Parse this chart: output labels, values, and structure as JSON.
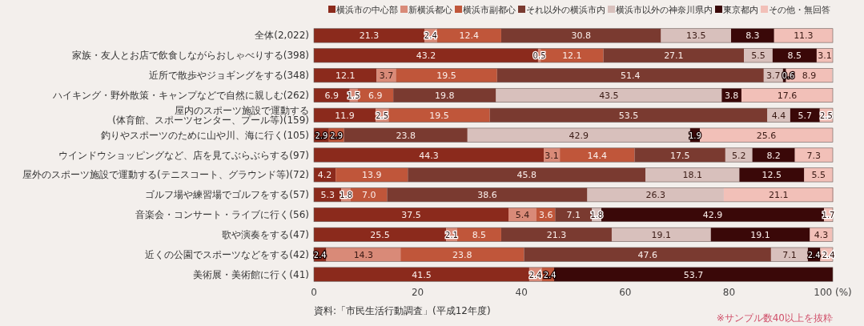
{
  "chart_data": {
    "type": "bar",
    "orientation": "horizontal",
    "stacked": true,
    "grid": false,
    "legend": "top right",
    "categories": [
      "全体(2,022)",
      "家族・友人とお店で飲食しながらおしゃべりする(398)",
      "近所で散歩やジョギングをする(348)",
      "ハイキング・野外散策・キャンプなどで自然に親しむ(262)",
      "屋内のスポーツ施設で運動する(体育館、スポーツセンター、プール等)(159)",
      "釣りやスポーツのために山や川、海に行く(105)",
      "ウインドウショッピングなど、店を見てぶらぶらする(97)",
      "屋外のスポーツ施設で運動する(テニスコート、グラウンド等)(72)",
      "ゴルフ場や練習場でゴルフをする(57)",
      "音楽会・コンサート・ライブに行く(56)",
      "歌や演奏をする(47)",
      "近くの公園でスポーツなどをする(42)",
      "美術展・美術館に行く(41)"
    ],
    "series": [
      {
        "name": "横浜市の中心部",
        "color": "#8b2a1c",
        "values": [
          21.3,
          43.2,
          12.1,
          6.9,
          11.9,
          2.9,
          44.3,
          4.2,
          5.3,
          37.5,
          25.5,
          2.4,
          41.5
        ],
        "value_labels": [
          "21.3",
          "43.2",
          "12.1",
          "6.9",
          "11.9",
          "2.9",
          "44.3",
          "4.2",
          "5.3",
          "37.5",
          "25.5",
          "2.4",
          "41.5"
        ]
      },
      {
        "name": "新横浜都心",
        "color": "#d98a78",
        "values": [
          2.4,
          0.5,
          3.7,
          1.5,
          2.5,
          0,
          3.1,
          0,
          1.8,
          5.4,
          2.1,
          14.3,
          2.4
        ],
        "value_labels": [
          "2.4",
          "0.5",
          "3.7",
          "1.5",
          "2.5",
          null,
          "3.1",
          null,
          "1.8",
          "5.4",
          "2.1",
          "14.3",
          "2.4"
        ]
      },
      {
        "name": "横浜市副都心",
        "color": "#c0563a",
        "values": [
          12.4,
          12.1,
          19.5,
          6.9,
          19.5,
          2.9,
          14.4,
          13.9,
          7.0,
          3.6,
          8.5,
          23.8,
          2.4
        ],
        "value_labels": [
          "12.4",
          "12.1",
          "19.5",
          "6.9",
          "19.5",
          "2.9",
          "14.4",
          "13.9",
          "7.0",
          "3.6",
          "8.5",
          "23.8",
          "2.4"
        ]
      },
      {
        "name": "それ以外の横浜市内",
        "color": "#7a3a30",
        "values": [
          30.8,
          27.1,
          51.4,
          19.8,
          53.5,
          23.8,
          17.5,
          45.8,
          38.6,
          7.1,
          21.3,
          47.6,
          0
        ],
        "value_labels": [
          "30.8",
          "27.1",
          "51.4",
          "19.8",
          "53.5",
          "23.8",
          "17.5",
          "45.8",
          "38.6",
          "7.1",
          "21.3",
          "47.6",
          null
        ]
      },
      {
        "name": "横浜市以外の神奈川県内",
        "color": "#d8c0bc",
        "values": [
          13.5,
          5.5,
          3.7,
          43.5,
          4.4,
          42.9,
          5.2,
          18.1,
          26.3,
          1.8,
          19.1,
          7.1,
          0
        ],
        "value_labels": [
          "13.5",
          "5.5",
          "3.7",
          "43.5",
          "4.4",
          "42.9",
          "5.2",
          "18.1",
          "26.3",
          "1.8",
          "19.1",
          "7.1",
          null
        ]
      },
      {
        "name": "東京都内",
        "color": "#3a0808",
        "values": [
          8.3,
          8.5,
          0.6,
          3.8,
          5.7,
          1.9,
          8.2,
          12.5,
          0,
          42.9,
          19.1,
          2.4,
          53.7
        ],
        "value_labels": [
          "8.3",
          "8.5",
          "0.6",
          "3.8",
          "5.7",
          "1.9",
          "8.2",
          "12.5",
          null,
          "42.9",
          "19.1",
          "2.4",
          "53.7"
        ]
      },
      {
        "name": "その他・無回答",
        "color": "#f2c0b8",
        "values": [
          11.3,
          3.1,
          8.9,
          17.6,
          2.5,
          25.6,
          7.3,
          5.5,
          21.1,
          1.7,
          4.3,
          2.4,
          0
        ],
        "value_labels": [
          "11.3",
          "3.1",
          "8.9",
          "17.6",
          "2.5",
          "25.6",
          "7.3",
          "5.5",
          "21.1",
          "1.7",
          "4.3",
          "2.4",
          null
        ]
      }
    ],
    "xlim": [
      0,
      100
    ],
    "xticks": [
      0,
      20,
      40,
      60,
      80,
      {
        "value": 100,
        "label": "100 (%)"
      }
    ],
    "annotations": [
      "資料:「市民生活行動調査」(平成12年度)",
      "※サンプル数40以上を抜粋"
    ]
  }
}
